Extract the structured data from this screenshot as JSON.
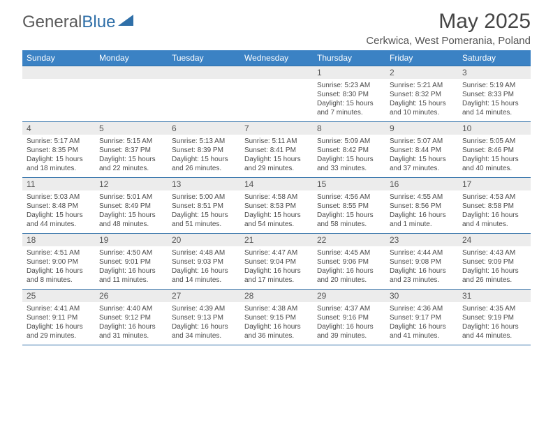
{
  "logo": {
    "text1": "General",
    "text2": "Blue"
  },
  "title": "May 2025",
  "location": "Cerkwica, West Pomerania, Poland",
  "dow": [
    "Sunday",
    "Monday",
    "Tuesday",
    "Wednesday",
    "Thursday",
    "Friday",
    "Saturday"
  ],
  "colors": {
    "header_bar": "#3b82c4",
    "rule": "#2f6fa8",
    "daynum_bg": "#ececec",
    "text_body": "#4a4a4a"
  },
  "weeks": [
    [
      {
        "n": "",
        "sr": "",
        "ss": "",
        "dl": ""
      },
      {
        "n": "",
        "sr": "",
        "ss": "",
        "dl": ""
      },
      {
        "n": "",
        "sr": "",
        "ss": "",
        "dl": ""
      },
      {
        "n": "",
        "sr": "",
        "ss": "",
        "dl": ""
      },
      {
        "n": "1",
        "sr": "Sunrise: 5:23 AM",
        "ss": "Sunset: 8:30 PM",
        "dl": "Daylight: 15 hours and 7 minutes."
      },
      {
        "n": "2",
        "sr": "Sunrise: 5:21 AM",
        "ss": "Sunset: 8:32 PM",
        "dl": "Daylight: 15 hours and 10 minutes."
      },
      {
        "n": "3",
        "sr": "Sunrise: 5:19 AM",
        "ss": "Sunset: 8:33 PM",
        "dl": "Daylight: 15 hours and 14 minutes."
      }
    ],
    [
      {
        "n": "4",
        "sr": "Sunrise: 5:17 AM",
        "ss": "Sunset: 8:35 PM",
        "dl": "Daylight: 15 hours and 18 minutes."
      },
      {
        "n": "5",
        "sr": "Sunrise: 5:15 AM",
        "ss": "Sunset: 8:37 PM",
        "dl": "Daylight: 15 hours and 22 minutes."
      },
      {
        "n": "6",
        "sr": "Sunrise: 5:13 AM",
        "ss": "Sunset: 8:39 PM",
        "dl": "Daylight: 15 hours and 26 minutes."
      },
      {
        "n": "7",
        "sr": "Sunrise: 5:11 AM",
        "ss": "Sunset: 8:41 PM",
        "dl": "Daylight: 15 hours and 29 minutes."
      },
      {
        "n": "8",
        "sr": "Sunrise: 5:09 AM",
        "ss": "Sunset: 8:42 PM",
        "dl": "Daylight: 15 hours and 33 minutes."
      },
      {
        "n": "9",
        "sr": "Sunrise: 5:07 AM",
        "ss": "Sunset: 8:44 PM",
        "dl": "Daylight: 15 hours and 37 minutes."
      },
      {
        "n": "10",
        "sr": "Sunrise: 5:05 AM",
        "ss": "Sunset: 8:46 PM",
        "dl": "Daylight: 15 hours and 40 minutes."
      }
    ],
    [
      {
        "n": "11",
        "sr": "Sunrise: 5:03 AM",
        "ss": "Sunset: 8:48 PM",
        "dl": "Daylight: 15 hours and 44 minutes."
      },
      {
        "n": "12",
        "sr": "Sunrise: 5:01 AM",
        "ss": "Sunset: 8:49 PM",
        "dl": "Daylight: 15 hours and 48 minutes."
      },
      {
        "n": "13",
        "sr": "Sunrise: 5:00 AM",
        "ss": "Sunset: 8:51 PM",
        "dl": "Daylight: 15 hours and 51 minutes."
      },
      {
        "n": "14",
        "sr": "Sunrise: 4:58 AM",
        "ss": "Sunset: 8:53 PM",
        "dl": "Daylight: 15 hours and 54 minutes."
      },
      {
        "n": "15",
        "sr": "Sunrise: 4:56 AM",
        "ss": "Sunset: 8:55 PM",
        "dl": "Daylight: 15 hours and 58 minutes."
      },
      {
        "n": "16",
        "sr": "Sunrise: 4:55 AM",
        "ss": "Sunset: 8:56 PM",
        "dl": "Daylight: 16 hours and 1 minute."
      },
      {
        "n": "17",
        "sr": "Sunrise: 4:53 AM",
        "ss": "Sunset: 8:58 PM",
        "dl": "Daylight: 16 hours and 4 minutes."
      }
    ],
    [
      {
        "n": "18",
        "sr": "Sunrise: 4:51 AM",
        "ss": "Sunset: 9:00 PM",
        "dl": "Daylight: 16 hours and 8 minutes."
      },
      {
        "n": "19",
        "sr": "Sunrise: 4:50 AM",
        "ss": "Sunset: 9:01 PM",
        "dl": "Daylight: 16 hours and 11 minutes."
      },
      {
        "n": "20",
        "sr": "Sunrise: 4:48 AM",
        "ss": "Sunset: 9:03 PM",
        "dl": "Daylight: 16 hours and 14 minutes."
      },
      {
        "n": "21",
        "sr": "Sunrise: 4:47 AM",
        "ss": "Sunset: 9:04 PM",
        "dl": "Daylight: 16 hours and 17 minutes."
      },
      {
        "n": "22",
        "sr": "Sunrise: 4:45 AM",
        "ss": "Sunset: 9:06 PM",
        "dl": "Daylight: 16 hours and 20 minutes."
      },
      {
        "n": "23",
        "sr": "Sunrise: 4:44 AM",
        "ss": "Sunset: 9:08 PM",
        "dl": "Daylight: 16 hours and 23 minutes."
      },
      {
        "n": "24",
        "sr": "Sunrise: 4:43 AM",
        "ss": "Sunset: 9:09 PM",
        "dl": "Daylight: 16 hours and 26 minutes."
      }
    ],
    [
      {
        "n": "25",
        "sr": "Sunrise: 4:41 AM",
        "ss": "Sunset: 9:11 PM",
        "dl": "Daylight: 16 hours and 29 minutes."
      },
      {
        "n": "26",
        "sr": "Sunrise: 4:40 AM",
        "ss": "Sunset: 9:12 PM",
        "dl": "Daylight: 16 hours and 31 minutes."
      },
      {
        "n": "27",
        "sr": "Sunrise: 4:39 AM",
        "ss": "Sunset: 9:13 PM",
        "dl": "Daylight: 16 hours and 34 minutes."
      },
      {
        "n": "28",
        "sr": "Sunrise: 4:38 AM",
        "ss": "Sunset: 9:15 PM",
        "dl": "Daylight: 16 hours and 36 minutes."
      },
      {
        "n": "29",
        "sr": "Sunrise: 4:37 AM",
        "ss": "Sunset: 9:16 PM",
        "dl": "Daylight: 16 hours and 39 minutes."
      },
      {
        "n": "30",
        "sr": "Sunrise: 4:36 AM",
        "ss": "Sunset: 9:17 PM",
        "dl": "Daylight: 16 hours and 41 minutes."
      },
      {
        "n": "31",
        "sr": "Sunrise: 4:35 AM",
        "ss": "Sunset: 9:19 PM",
        "dl": "Daylight: 16 hours and 44 minutes."
      }
    ]
  ]
}
